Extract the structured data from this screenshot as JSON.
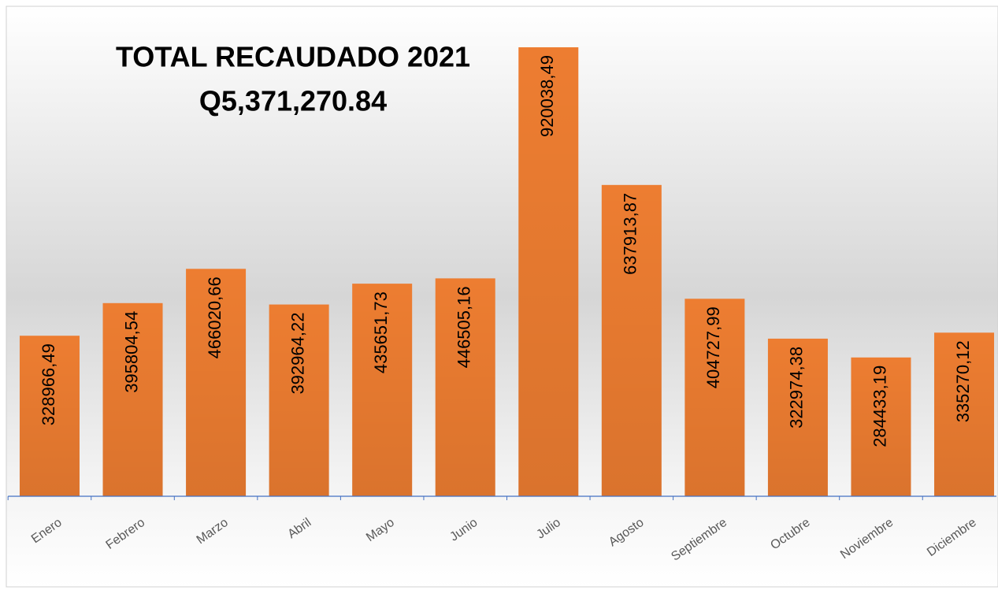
{
  "chart_data": {
    "type": "bar",
    "title": "TOTAL RECAUDADO 2021",
    "subtitle": "Q5,371,270.84",
    "categories": [
      "Enero",
      "Febrero",
      "Marzo",
      "Abril",
      "Mayo",
      "Junio",
      "Julio",
      "Agosto",
      "Septiembre",
      "Octubre",
      "Noviembre",
      "Diciembre"
    ],
    "values": [
      328966.49,
      395804.54,
      466020.66,
      392964.22,
      435651.73,
      446505.16,
      920038.49,
      637913.87,
      404727.99,
      322974.38,
      284433.19,
      335270.12
    ],
    "value_labels": [
      "328966,49",
      "395804,54",
      "466020,66",
      "392964,22",
      "435651,73",
      "446505,16",
      "920038,49",
      "637913,87",
      "404727,99",
      "322974,38",
      "284433,19",
      "335270,12"
    ],
    "color": "#ed7d31",
    "ylim": [
      0,
      1000000
    ]
  }
}
